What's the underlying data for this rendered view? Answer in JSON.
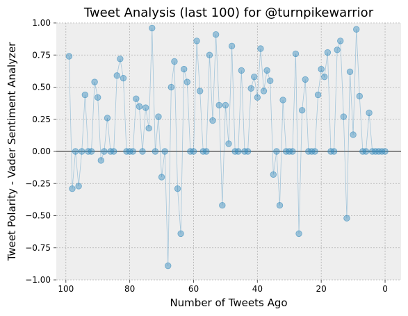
{
  "chart_data": {
    "type": "line",
    "title": "Tweet Analysis (last 100) for @turnpikewarrior",
    "xlabel": "Number of Tweets Ago",
    "ylabel": "Tweet Polarity - Vader Sentiment Analyzer",
    "xlim": [
      103,
      -5
    ],
    "ylim": [
      -1.0,
      1.0
    ],
    "xticks": [
      100,
      80,
      60,
      40,
      20,
      0
    ],
    "yticks": [
      -1.0,
      -0.75,
      -0.5,
      -0.25,
      0.0,
      0.25,
      0.5,
      0.75,
      1.0
    ],
    "xtick_labels": [
      "100",
      "80",
      "60",
      "40",
      "20",
      "0"
    ],
    "ytick_labels": [
      "−1.00",
      "−0.75",
      "−0.50",
      "−0.25",
      "0.00",
      "0.25",
      "0.50",
      "0.75",
      "1.00"
    ],
    "grid": true,
    "reference_line_y": 0,
    "marker": "circle",
    "series_color": "#348abd",
    "reference_line_color": "#888888",
    "background_color": "#eeeeee",
    "x": [
      99,
      98,
      97,
      96,
      95,
      94,
      93,
      92,
      91,
      90,
      89,
      88,
      87,
      86,
      85,
      84,
      83,
      82,
      81,
      80,
      79,
      78,
      77,
      76,
      75,
      74,
      73,
      72,
      71,
      70,
      69,
      68,
      67,
      66,
      65,
      64,
      63,
      62,
      61,
      60,
      59,
      58,
      57,
      56,
      55,
      54,
      53,
      52,
      51,
      50,
      49,
      48,
      47,
      46,
      45,
      44,
      43,
      42,
      41,
      40,
      39,
      38,
      37,
      36,
      35,
      34,
      33,
      32,
      31,
      30,
      29,
      28,
      27,
      26,
      25,
      24,
      23,
      22,
      21,
      20,
      19,
      18,
      17,
      16,
      15,
      14,
      13,
      12,
      11,
      10,
      9,
      8,
      7,
      6,
      5,
      4,
      3,
      2,
      1,
      0
    ],
    "values": [
      0.74,
      -0.29,
      0.0,
      -0.27,
      0.0,
      0.44,
      0.0,
      0.0,
      0.54,
      0.42,
      -0.07,
      0.0,
      0.26,
      0.0,
      0.0,
      0.59,
      0.72,
      0.57,
      0.0,
      0.0,
      0.0,
      0.41,
      0.35,
      0.0,
      0.34,
      0.18,
      0.96,
      0.0,
      0.27,
      -0.2,
      0.0,
      -0.89,
      0.5,
      0.7,
      -0.29,
      -0.64,
      0.64,
      0.54,
      0.0,
      0.0,
      0.86,
      0.47,
      0.0,
      0.0,
      0.75,
      0.24,
      0.91,
      0.36,
      -0.42,
      0.36,
      0.06,
      0.82,
      0.0,
      0.0,
      0.63,
      0.0,
      0.0,
      0.49,
      0.58,
      0.42,
      0.8,
      0.47,
      0.63,
      0.55,
      -0.18,
      0.0,
      -0.42,
      0.4,
      0.0,
      0.0,
      0.0,
      0.76,
      -0.64,
      0.32,
      0.56,
      0.0,
      0.0,
      0.0,
      0.44,
      0.64,
      0.58,
      0.77,
      0.0,
      0.0,
      0.79,
      0.86,
      0.27,
      -0.52,
      0.62,
      0.13,
      0.95,
      0.43,
      0.0,
      0.0,
      0.3,
      0.0,
      0.0,
      0.0,
      0.0,
      0.0
    ]
  }
}
